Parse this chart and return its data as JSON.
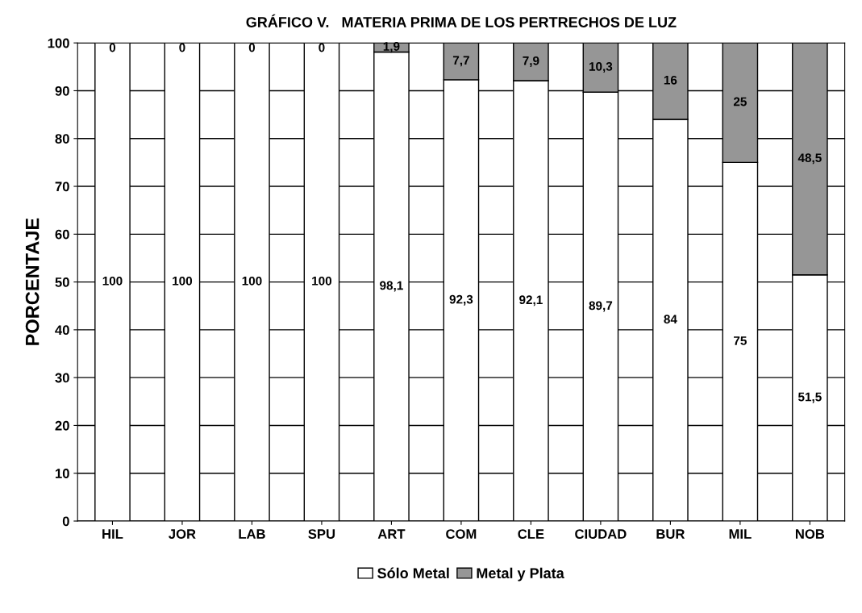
{
  "chart_data": {
    "type": "bar",
    "stacked": true,
    "title": "GRÁFICO V.   MATERIA PRIMA DE LOS PERTRECHOS DE LUZ",
    "ylabel": "PORCENTAJE",
    "categories": [
      "HIL",
      "JOR",
      "LAB",
      "SPU",
      "ART",
      "COM",
      "CLE",
      "CIUDAD",
      "BUR",
      "MIL",
      "NOB"
    ],
    "series": [
      {
        "name": "Sólo Metal",
        "color": "#ffffff",
        "values": [
          100,
          100,
          100,
          100,
          98.1,
          92.3,
          92.1,
          89.7,
          84,
          75,
          51.5
        ],
        "value_labels": [
          "100",
          "100",
          "100",
          "100",
          "98,1",
          "92,3",
          "92,1",
          "89,7",
          "84",
          "75",
          "51,5"
        ]
      },
      {
        "name": "Metal y Plata",
        "color": "#969696",
        "values": [
          0,
          0,
          0,
          0,
          1.9,
          7.7,
          7.9,
          10.3,
          16,
          25,
          48.5
        ],
        "value_labels": [
          "0",
          "0",
          "0",
          "0",
          "1,9",
          "7,7",
          "7,9",
          "10,3",
          "16",
          "25",
          "48,5"
        ]
      }
    ],
    "ylim": [
      0,
      100
    ],
    "yticks": [
      0,
      10,
      20,
      30,
      40,
      50,
      60,
      70,
      80,
      90,
      100
    ],
    "grid": "y",
    "legend": "bottom"
  }
}
